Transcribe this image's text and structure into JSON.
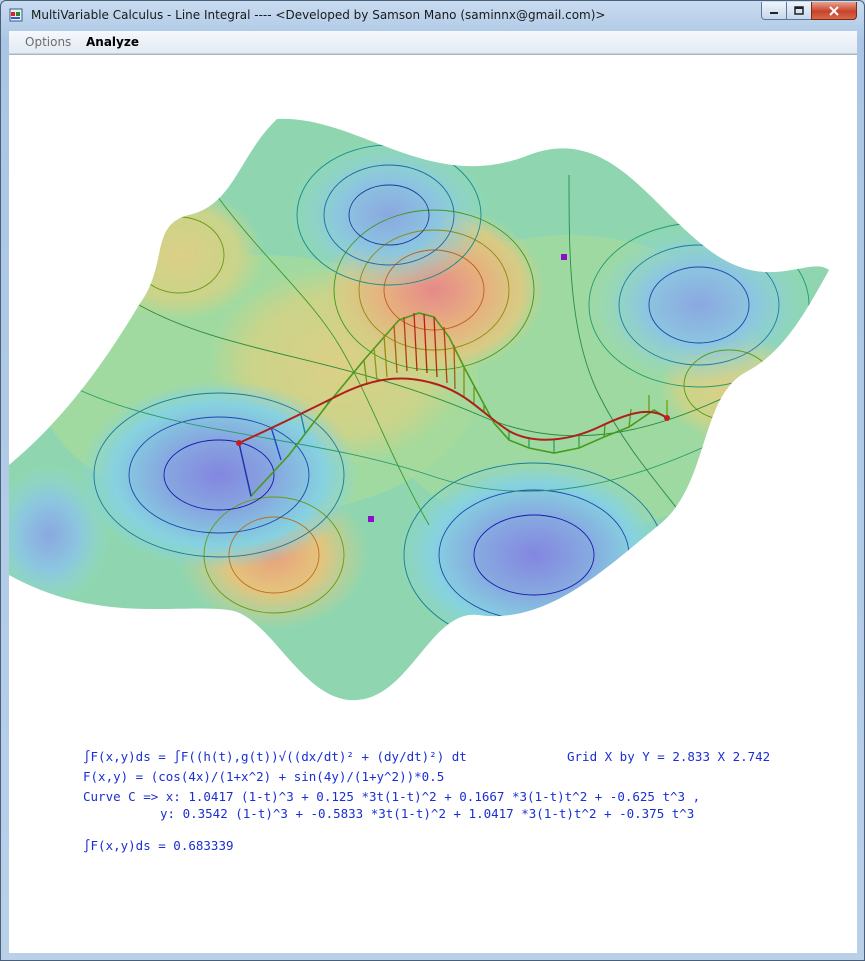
{
  "window": {
    "title": "MultiVariable Calculus - Line Integral ---- <Developed by Samson Mano (saminnx@gmail.com)>",
    "icon": "app-icon",
    "controls": [
      "minimize-icon",
      "maximize-icon",
      "close-icon"
    ]
  },
  "menu": {
    "options_label": "Options",
    "analyze_label": "Analyze"
  },
  "info": {
    "integral_definition": "∫F(x,y)ds = ∫F((h(t),g(t))√((dx/dt)² + (dy/dt)²) dt",
    "grid_size": "Grid X by Y = 2.833 X 2.742",
    "function": "F(x,y) = (cos(4x)/(1+x^2) + sin(4y)/(1+y^2))*0.5",
    "curve_x": "Curve C => x: 1.0417 (1-t)^3 + 0.125 *3t(1-t)^2 + 0.1667 *3(1-t)t^2 + -0.625 t^3 ,",
    "curve_y": "y: 0.3542 (1-t)^3 + -0.5833 *3t(1-t)^2 + 1.0417 *3(1-t)t^2 + -0.375 t^3",
    "result": "∫F(x,y)ds = 0.683339"
  },
  "colors": {
    "equation_text": "#1a2fd2",
    "curve": "#b0201a",
    "marker": "#8a10c8"
  }
}
